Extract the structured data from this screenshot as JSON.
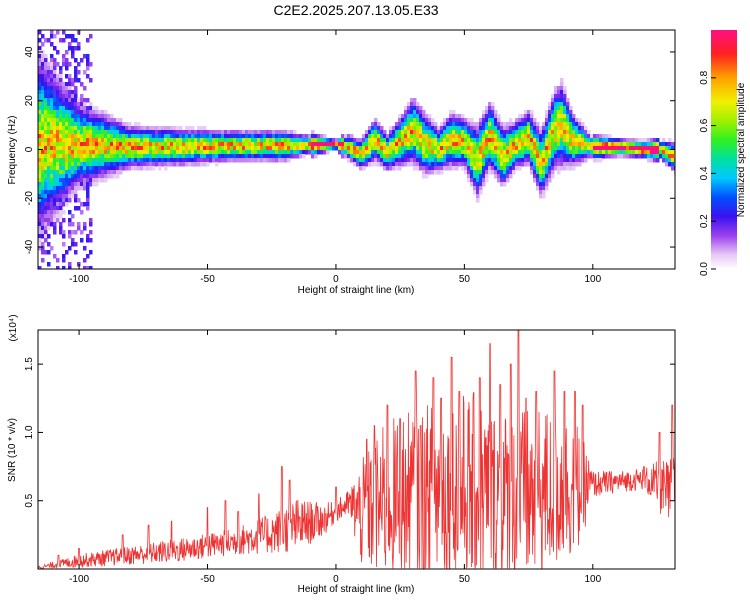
{
  "title": "C2E2.2025.207.13.05.E33",
  "chart_data": [
    {
      "type": "heatmap",
      "xlabel": "Height of straight line (km)",
      "ylabel": "Frequency (Hz)",
      "xlim": [
        -116,
        132
      ],
      "ylim": [
        -49,
        49
      ],
      "xticks": [
        -100,
        -50,
        0,
        50,
        100
      ],
      "yticks": [
        -40,
        -20,
        0,
        20,
        40
      ],
      "colorbar": {
        "label": "Normalized spectral amplitude",
        "range": [
          0,
          1
        ],
        "ticks": [
          "0.0",
          "0.2",
          "0.4",
          "0.6",
          "0.8"
        ],
        "tick_values": [
          0,
          0.2,
          0.4,
          0.6,
          0.8
        ]
      },
      "ridge": {
        "x": [
          -116,
          -100,
          -80,
          -60,
          -40,
          -20,
          -10,
          0,
          5,
          10,
          15,
          20,
          25,
          30,
          35,
          40,
          45,
          50,
          55,
          60,
          65,
          70,
          75,
          80,
          85,
          88,
          92,
          100,
          110,
          120,
          126,
          132
        ],
        "center_hz": [
          2,
          2,
          1,
          1,
          1.5,
          1.5,
          2,
          2,
          1,
          -2,
          4,
          -1,
          3,
          8,
          2,
          0,
          4,
          3,
          -5,
          6,
          -3,
          2,
          5,
          -6,
          8,
          10,
          4,
          1,
          1,
          0,
          0,
          -3
        ],
        "spread_hz": [
          30,
          14,
          7,
          6,
          5,
          5,
          3,
          1,
          4,
          5,
          7,
          6,
          8,
          11,
          10,
          7,
          9,
          8,
          12,
          11,
          10,
          8,
          9,
          11,
          13,
          14,
          9,
          3,
          2,
          2,
          3,
          5
        ]
      }
    },
    {
      "type": "line",
      "xlabel": "Height of straight line (km)",
      "ylabel": "SNR (10 * v/v)",
      "y_multiplier": "(x10⁴)",
      "xlim": [
        -116,
        132
      ],
      "ylim": [
        0,
        1.75
      ],
      "xticks": [
        -100,
        -50,
        0,
        50,
        100
      ],
      "yticks": [
        0.5,
        1.0,
        1.5
      ],
      "ytick_labels": [
        "0.5",
        "1.0",
        "1.5"
      ],
      "series": [
        {
          "color": "#ee3333",
          "envelope": {
            "x": [
              -116,
              -100,
              -80,
              -60,
              -40,
              -25,
              -15,
              -5,
              0,
              5,
              10,
              15,
              20,
              30,
              40,
              50,
              55,
              60,
              70,
              80,
              90,
              95,
              100,
              110,
              120,
              126,
              130,
              132
            ],
            "base": [
              0.01,
              0.06,
              0.1,
              0.14,
              0.2,
              0.26,
              0.32,
              0.36,
              0.42,
              0.48,
              0.4,
              0.45,
              0.5,
              0.52,
              0.55,
              0.58,
              0.55,
              0.5,
              0.5,
              0.55,
              0.6,
              0.6,
              0.62,
              0.64,
              0.66,
              0.6,
              0.55,
              0.6
            ],
            "amplitude": [
              0.01,
              0.05,
              0.07,
              0.09,
              0.1,
              0.15,
              0.2,
              0.12,
              0.08,
              0.1,
              0.4,
              0.5,
              0.6,
              0.65,
              0.7,
              0.72,
              0.75,
              0.7,
              0.68,
              0.65,
              0.55,
              0.45,
              0.1,
              0.08,
              0.08,
              0.2,
              0.25,
              0.3
            ],
            "peaks_x": [
              -108,
              -100,
              -83,
              -73,
              -64,
              -50,
              -43,
              -38,
              -30,
              -21,
              -18,
              0,
              12,
              15,
              20,
              25,
              31,
              33,
              38,
              41,
              45,
              48,
              56,
              60,
              64,
              68,
              71,
              74,
              78,
              85,
              89,
              93,
              96,
              120,
              126,
              131
            ],
            "peaks_y": [
              0.1,
              0.15,
              0.25,
              0.32,
              0.35,
              0.45,
              0.5,
              0.42,
              0.55,
              0.75,
              0.65,
              0.6,
              0.95,
              1.05,
              1.2,
              1.1,
              1.45,
              1.05,
              1.4,
              1.25,
              1.55,
              1.3,
              1.4,
              1.65,
              1.35,
              1.5,
              1.75,
              1.25,
              1.3,
              1.45,
              1.3,
              1.3,
              1.2,
              0.75,
              1.0,
              1.2
            ]
          }
        }
      ]
    }
  ]
}
